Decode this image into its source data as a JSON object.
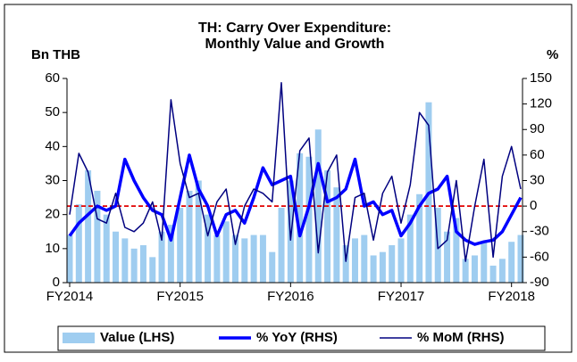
{
  "chart_data": {
    "type": "bar-line",
    "title": [
      "TH: Carry Over Expenditure:",
      "Monthly Value and Growth"
    ],
    "ylabel": "Bn THB",
    "y2label": "%",
    "categories": [
      "FY2014",
      null,
      null,
      null,
      null,
      null,
      null,
      null,
      null,
      null,
      null,
      null,
      "FY2015",
      null,
      null,
      null,
      null,
      null,
      null,
      null,
      null,
      null,
      null,
      null,
      "FY2016",
      null,
      null,
      null,
      null,
      null,
      null,
      null,
      null,
      null,
      null,
      null,
      "FY2017",
      null,
      null,
      null,
      null,
      null,
      null,
      null,
      null,
      null,
      null,
      null,
      "FY2018",
      null
    ],
    "series": [
      {
        "name": "Value (LHS)",
        "type": "bar",
        "color": "#9fcdf0",
        "axis": "y",
        "values": [
          14,
          23,
          33,
          27,
          20,
          15,
          13,
          10,
          11,
          7.5,
          15,
          17,
          22,
          27,
          30,
          20,
          14,
          18,
          14,
          13,
          14,
          14,
          9,
          22,
          30,
          38,
          37,
          45,
          33,
          28,
          11,
          13,
          14,
          8,
          9,
          11,
          13,
          20,
          26,
          53,
          22,
          15,
          19,
          7,
          8,
          12,
          5,
          7,
          12,
          14
        ]
      },
      {
        "name": "% YoY (RHS)",
        "type": "line",
        "color": "#0000ff",
        "width": 3.5,
        "axis": "y2",
        "values": [
          -35,
          -20,
          -10,
          0,
          -5,
          0,
          55,
          30,
          10,
          -5,
          -10,
          -40,
          10,
          60,
          20,
          0,
          -35,
          -10,
          -5,
          -20,
          10,
          45,
          25,
          30,
          35,
          -35,
          0,
          50,
          5,
          10,
          20,
          55,
          0,
          5,
          -10,
          -5,
          -35,
          -20,
          0,
          15,
          20,
          35,
          -30,
          -40,
          -45,
          -42,
          -40,
          -30,
          -10,
          10
        ]
      },
      {
        "name": "% MoM (RHS)",
        "type": "line",
        "color": "#000080",
        "width": 1.5,
        "axis": "y2",
        "values": [
          -10,
          62,
          40,
          -15,
          -20,
          15,
          -25,
          -30,
          -20,
          5,
          -40,
          125,
          50,
          10,
          15,
          -35,
          5,
          20,
          -45,
          0,
          20,
          15,
          5,
          145,
          -40,
          65,
          80,
          -55,
          40,
          60,
          -65,
          10,
          15,
          -40,
          15,
          35,
          -20,
          25,
          110,
          95,
          -50,
          -40,
          30,
          -65,
          0,
          55,
          -60,
          35,
          70,
          20
        ]
      }
    ],
    "reference_line": {
      "axis": "y2",
      "value": 0,
      "color": "#e00000",
      "style": "dashed"
    },
    "ylim": [
      0,
      60
    ],
    "yticks": [
      0,
      10,
      20,
      30,
      40,
      50,
      60
    ],
    "y2lim": [
      -90,
      150
    ],
    "y2ticks": [
      -90,
      -60,
      -30,
      0,
      30,
      60,
      90,
      120,
      150
    ],
    "legend": "bottom"
  }
}
